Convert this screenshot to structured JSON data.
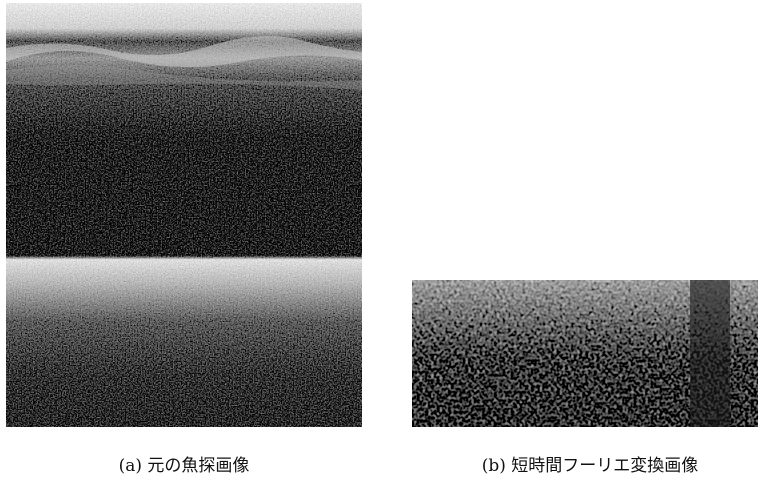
{
  "figures": [
    {
      "caption": "(a) 元の魚探画像"
    },
    {
      "caption": "(b) 短時間フーリエ変換画像"
    }
  ]
}
